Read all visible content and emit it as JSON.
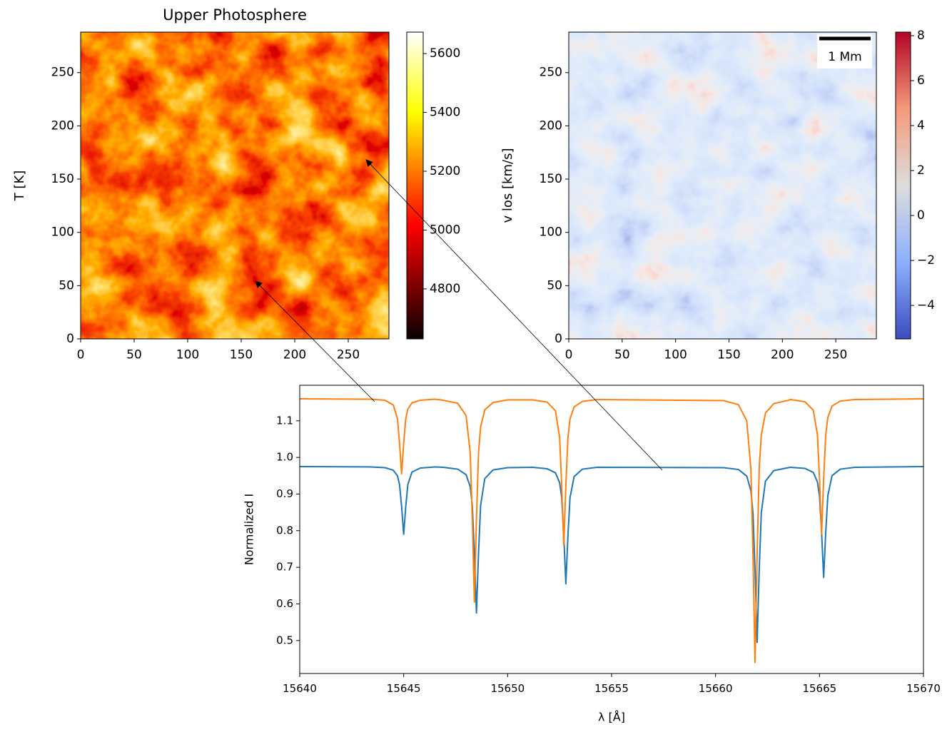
{
  "chart_data": [
    {
      "type": "heatmap",
      "title": "Upper Photosphere",
      "ylabel": "T [K]",
      "colormap": "hot",
      "xlim": [
        0,
        288
      ],
      "ylim": [
        0,
        288
      ],
      "xticks": [
        0,
        50,
        100,
        150,
        200,
        250
      ],
      "yticks": [
        0,
        50,
        100,
        150,
        200,
        250
      ],
      "colorbar": {
        "lim": [
          4630,
          5673
        ],
        "ticks": [
          4800,
          5000,
          5200,
          5400,
          5600
        ]
      }
    },
    {
      "type": "heatmap",
      "ylabel": "v los [km/s]",
      "colormap": "coolwarm",
      "annotation": "1 Mm",
      "xlim": [
        0,
        288
      ],
      "ylim": [
        0,
        288
      ],
      "xticks": [
        0,
        50,
        100,
        150,
        200,
        250
      ],
      "yticks": [
        0,
        50,
        100,
        150,
        200,
        250
      ],
      "colorbar": {
        "lim": [
          -5.49,
          8.16
        ],
        "ticks": [
          {
            "value": -4,
            "label": "−4"
          },
          {
            "value": -2,
            "label": "−2"
          },
          0,
          2,
          4,
          6,
          8
        ]
      }
    },
    {
      "type": "line",
      "xlabel": "λ [Å]",
      "ylabel": "Normalized I",
      "xlim": [
        15640,
        15670
      ],
      "ylim": [
        0.41,
        1.197
      ],
      "xticks": [
        15640,
        15645,
        15650,
        15655,
        15660,
        15665,
        15670
      ],
      "yticks": [
        0.5,
        0.6,
        0.7,
        0.8,
        0.9,
        {
          "value": 1,
          "label": "1.0"
        },
        1.1
      ],
      "x": [
        15640,
        15643.4,
        15644.1,
        15644.5,
        15644.7,
        15644.8,
        15644.9,
        15645.0,
        15645.1,
        15645.2,
        15645.4,
        15645.8,
        15646.5,
        15646.9,
        15647.6,
        15648.0,
        15648.2,
        15648.3,
        15648.4,
        15648.5,
        15648.6,
        15648.7,
        15648.9,
        15649.3,
        15650.0,
        15651.2,
        15651.9,
        15652.3,
        15652.5,
        15652.6,
        15652.7,
        15652.8,
        15652.9,
        15653.0,
        15653.2,
        15653.6,
        15654.3,
        15660.4,
        15661.1,
        15661.5,
        15661.7,
        15661.8,
        15661.9,
        15662.0,
        15662.1,
        15662.2,
        15662.4,
        15662.8,
        15663.5,
        15663.6,
        15664.3,
        15664.7,
        15664.9,
        15665.0,
        15665.1,
        15665.2,
        15665.3,
        15665.4,
        15665.6,
        15666.0,
        15666.7,
        15670
      ],
      "series": [
        {
          "color": "#1f77b4",
          "values": [
            0.975,
            0.974,
            0.972,
            0.965,
            0.95,
            0.926,
            0.866,
            0.79,
            0.866,
            0.926,
            0.96,
            0.971,
            0.974,
            0.973,
            0.968,
            0.953,
            0.92,
            0.869,
            0.739,
            0.575,
            0.739,
            0.869,
            0.942,
            0.966,
            0.972,
            0.973,
            0.969,
            0.958,
            0.931,
            0.89,
            0.786,
            0.655,
            0.786,
            0.89,
            0.948,
            0.968,
            0.973,
            0.972,
            0.967,
            0.949,
            0.909,
            0.848,
            0.692,
            0.495,
            0.692,
            0.848,
            0.935,
            0.964,
            0.972,
            0.973,
            0.97,
            0.959,
            0.933,
            0.895,
            0.796,
            0.672,
            0.796,
            0.895,
            0.95,
            0.968,
            0.973,
            0.975
          ]
        },
        {
          "color": "#ff7f0e",
          "values": [
            1.16,
            1.159,
            1.156,
            1.143,
            1.106,
            1.039,
            0.955,
            1.039,
            1.106,
            1.132,
            1.149,
            1.156,
            1.159,
            1.156,
            1.148,
            1.114,
            1.013,
            0.833,
            0.605,
            0.833,
            1.013,
            1.083,
            1.13,
            1.15,
            1.157,
            1.157,
            1.151,
            1.127,
            1.054,
            0.924,
            0.76,
            0.924,
            1.054,
            1.105,
            1.138,
            1.153,
            1.158,
            1.155,
            1.144,
            1.1,
            0.969,
            0.735,
            0.44,
            0.735,
            0.969,
            1.061,
            1.121,
            1.147,
            1.156,
            1.158,
            1.152,
            1.129,
            1.062,
            0.942,
            0.79,
            0.942,
            1.062,
            1.109,
            1.14,
            1.154,
            1.158,
            1.16
          ]
        }
      ]
    }
  ]
}
